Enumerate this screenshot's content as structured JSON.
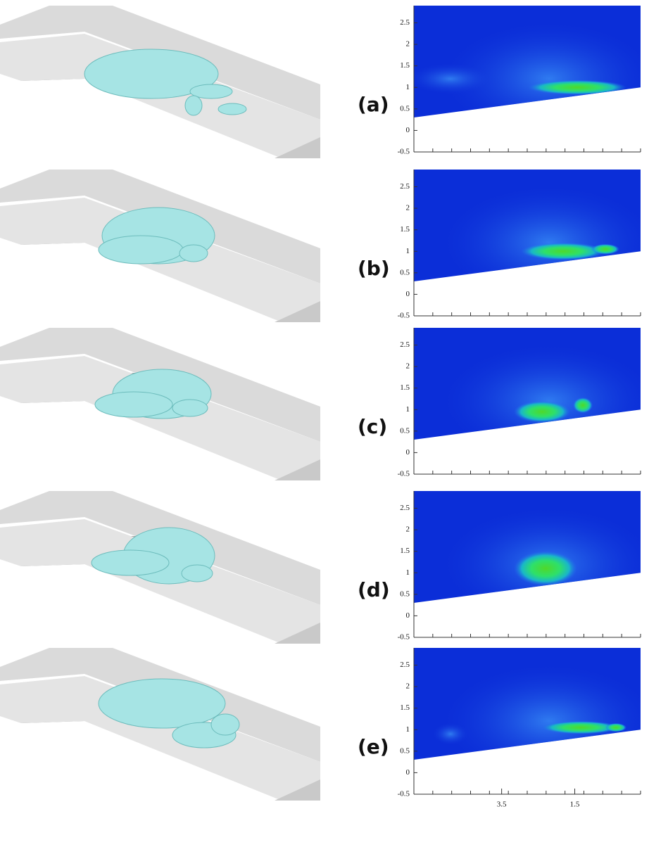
{
  "figure": {
    "panels": [
      {
        "label": "(a)",
        "ylim": [
          -0.5,
          2.9
        ],
        "yticks": [
          -0.5,
          0,
          0.5,
          1,
          1.5,
          2,
          2.5
        ]
      },
      {
        "label": "(b)",
        "ylim": [
          -0.5,
          2.9
        ],
        "yticks": [
          -0.5,
          0,
          0.5,
          1,
          1.5,
          2,
          2.5
        ]
      },
      {
        "label": "(c)",
        "ylim": [
          -0.5,
          2.9
        ],
        "yticks": [
          -0.5,
          0,
          0.5,
          1,
          1.5,
          2,
          2.5
        ]
      },
      {
        "label": "(d)",
        "ylim": [
          -0.5,
          2.9
        ],
        "yticks": [
          -0.5,
          0,
          0.5,
          1,
          1.5,
          2,
          2.5
        ]
      },
      {
        "label": "(e)",
        "ylim": [
          -0.5,
          2.9
        ],
        "yticks": [
          -0.5,
          0,
          0.5,
          1,
          1.5,
          2,
          2.5
        ],
        "xlim": [
          5.9,
          -0.3
        ],
        "xticks": [
          3.5,
          1.5
        ]
      }
    ]
  }
}
